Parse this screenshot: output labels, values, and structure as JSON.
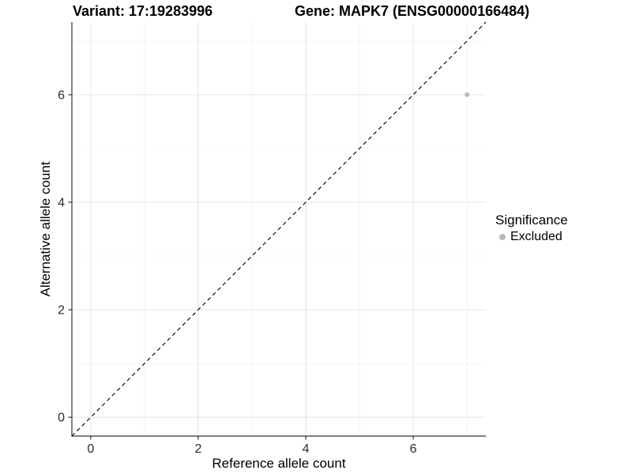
{
  "chart_data": {
    "type": "scatter",
    "title_left": "Variant: 17:19283996",
    "title_right": "Gene: MAPK7 (ENSG00000166484)",
    "xlabel": "Reference allele count",
    "ylabel": "Alternative allele count",
    "xlim": [
      -0.35,
      7.35
    ],
    "ylim": [
      -0.35,
      7.35
    ],
    "x_ticks": [
      0,
      2,
      4,
      6
    ],
    "y_ticks": [
      0,
      2,
      4,
      6
    ],
    "x_minor_gridlines": [
      1,
      3,
      5,
      7
    ],
    "y_minor_gridlines": [
      1,
      3,
      5,
      7
    ],
    "grid": true,
    "identity_line": {
      "style": "dashed",
      "slope": 1,
      "intercept": 0,
      "from": [
        -0.35,
        -0.35
      ],
      "to": [
        7.35,
        7.35
      ],
      "color": "#1a1a1a"
    },
    "series": [
      {
        "name": "Excluded",
        "color": "#b9b9b9",
        "points": [
          {
            "x": 7,
            "y": 6
          }
        ]
      }
    ],
    "legend": {
      "title": "Significance",
      "position": "right",
      "entries": [
        {
          "label": "Excluded",
          "color": "#b9b9b9",
          "marker": "circle-icon"
        }
      ]
    },
    "colors": {
      "background": "#ffffff",
      "major_gridline": "#e7e7e7",
      "minor_gridline": "#f0f0f0",
      "axis_line": "#333333",
      "point": "#b9b9b9"
    }
  }
}
